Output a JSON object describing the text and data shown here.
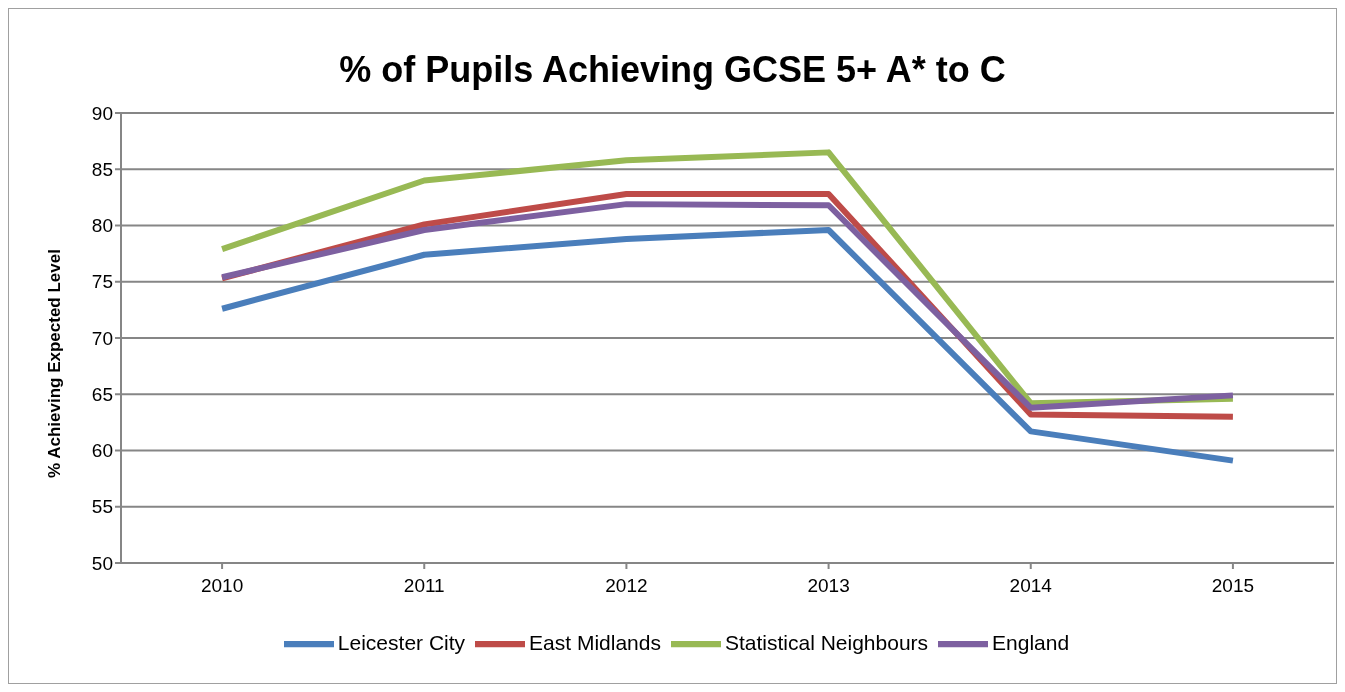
{
  "chart_data": {
    "type": "line",
    "title": "% of Pupils Achieving GCSE 5+ A* to C",
    "ylabel": "% Achieving  Expected Level",
    "categories": [
      "2010",
      "2011",
      "2012",
      "2013",
      "2014",
      "2015"
    ],
    "series": [
      {
        "name": "Leicester City",
        "color": "#4a7ebb",
        "values": [
          72.6,
          77.4,
          78.8,
          79.6,
          61.7,
          59.1
        ]
      },
      {
        "name": "East Midlands",
        "color": "#be4b48",
        "values": [
          75.3,
          80.1,
          82.8,
          82.8,
          63.2,
          63.0
        ]
      },
      {
        "name": "Statistical Neighbours",
        "color": "#98b954",
        "values": [
          77.9,
          84.0,
          85.8,
          86.5,
          64.2,
          64.6
        ]
      },
      {
        "name": "England",
        "color": "#7d60a0",
        "values": [
          75.4,
          79.6,
          81.9,
          81.8,
          63.8,
          64.9
        ]
      }
    ],
    "ylim": [
      50,
      90
    ],
    "yticks": [
      50,
      55,
      60,
      65,
      70,
      75,
      80,
      85,
      90
    ],
    "grid": "y",
    "legend": "bottom",
    "marker": "none",
    "line_style": "solid"
  }
}
